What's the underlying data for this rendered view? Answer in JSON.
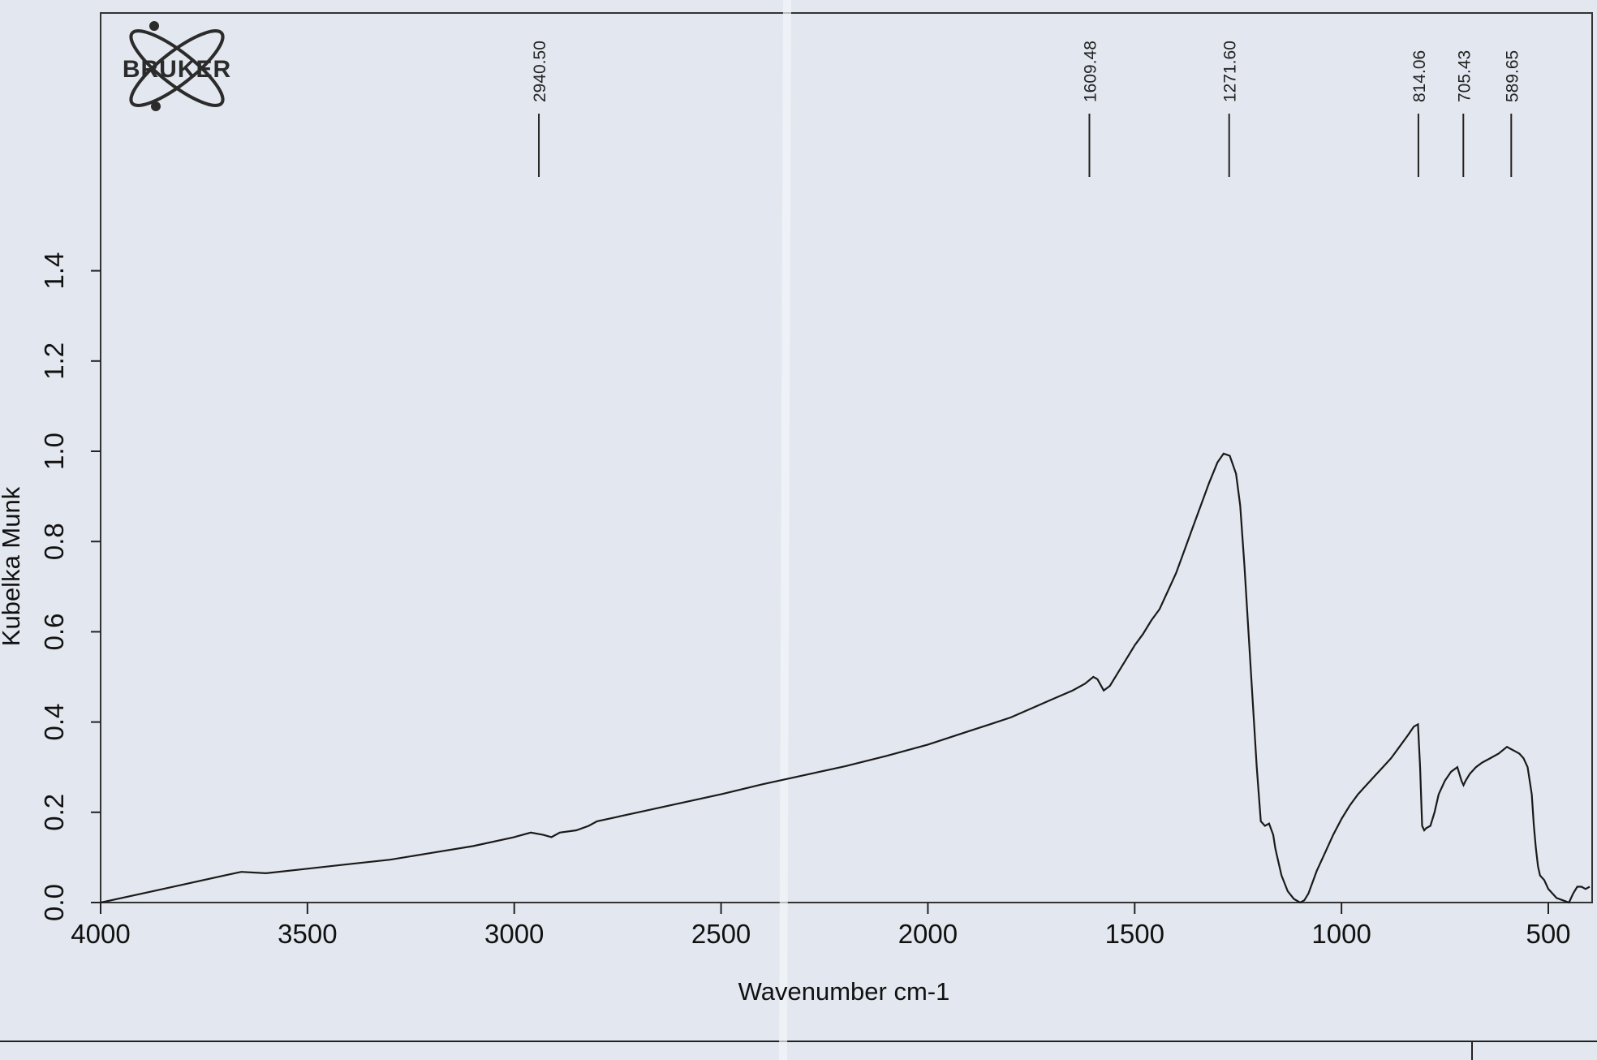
{
  "logo": {
    "text": "BRUKER"
  },
  "colors": {
    "background": "#e3e7ef",
    "line": "#1a1a1a",
    "axis": "#222222"
  },
  "chart_data": {
    "type": "line",
    "title": "",
    "xlabel": "Wavenumber cm-1",
    "ylabel": "Kubelka Munk",
    "xlim": [
      4000,
      400
    ],
    "ylim": [
      0,
      1.7
    ],
    "x_reversed": true,
    "grid": false,
    "x_ticks": [
      4000,
      3500,
      3000,
      2500,
      2000,
      1500,
      1000,
      500
    ],
    "x_tick_labels": [
      "4000",
      "3500",
      "3000",
      "2500",
      "2000",
      "1500",
      "1000",
      "500"
    ],
    "y_ticks": [
      0.0,
      0.2,
      0.4,
      0.6,
      0.8,
      1.0,
      1.2,
      1.4
    ],
    "y_tick_labels": [
      "0.0",
      "0.2",
      "0.4",
      "0.6",
      "0.8",
      "1.0",
      "1.2",
      "1.4"
    ],
    "peak_labels": [
      {
        "x": 2940.5,
        "label": "2940.50"
      },
      {
        "x": 1609.48,
        "label": "1609.48"
      },
      {
        "x": 1271.6,
        "label": "1271.60"
      },
      {
        "x": 814.06,
        "label": "814.06"
      },
      {
        "x": 705.43,
        "label": "705.43"
      },
      {
        "x": 589.65,
        "label": "589.65"
      }
    ],
    "series": [
      {
        "x": [
          4000,
          3900,
          3800,
          3700,
          3660,
          3600,
          3500,
          3400,
          3300,
          3200,
          3100,
          3000,
          2960,
          2930,
          2910,
          2890,
          2850,
          2820,
          2800,
          2700,
          2600,
          2500,
          2400,
          2300,
          2200,
          2100,
          2000,
          1900,
          1850,
          1800,
          1750,
          1700,
          1650,
          1620,
          1600,
          1590,
          1575,
          1560,
          1540,
          1520,
          1500,
          1480,
          1460,
          1440,
          1420,
          1400,
          1380,
          1360,
          1340,
          1320,
          1300,
          1285,
          1270,
          1255,
          1245,
          1235,
          1225,
          1215,
          1205,
          1195,
          1185,
          1175,
          1165,
          1160,
          1155,
          1145,
          1130,
          1115,
          1100,
          1090,
          1080,
          1070,
          1060,
          1040,
          1020,
          1000,
          980,
          960,
          940,
          920,
          900,
          880,
          860,
          840,
          825,
          815,
          810,
          805,
          800,
          795,
          785,
          775,
          765,
          750,
          735,
          720,
          710,
          705,
          700,
          690,
          675,
          660,
          640,
          620,
          600,
          590,
          580,
          570,
          560,
          550,
          540,
          535,
          530,
          525,
          520,
          510,
          500,
          480,
          465,
          450,
          440,
          430,
          420,
          410,
          400
        ],
        "y": [
          0.0,
          0.02,
          0.04,
          0.06,
          0.068,
          0.065,
          0.075,
          0.085,
          0.095,
          0.11,
          0.125,
          0.145,
          0.155,
          0.15,
          0.145,
          0.155,
          0.16,
          0.17,
          0.18,
          0.2,
          0.22,
          0.24,
          0.262,
          0.282,
          0.302,
          0.325,
          0.35,
          0.38,
          0.395,
          0.41,
          0.43,
          0.45,
          0.47,
          0.485,
          0.5,
          0.495,
          0.47,
          0.48,
          0.51,
          0.54,
          0.57,
          0.595,
          0.625,
          0.65,
          0.69,
          0.73,
          0.78,
          0.83,
          0.88,
          0.93,
          0.975,
          0.995,
          0.99,
          0.95,
          0.88,
          0.75,
          0.6,
          0.45,
          0.3,
          0.18,
          0.17,
          0.175,
          0.15,
          0.12,
          0.1,
          0.06,
          0.025,
          0.008,
          0.0,
          0.005,
          0.02,
          0.045,
          0.07,
          0.11,
          0.15,
          0.185,
          0.215,
          0.24,
          0.26,
          0.28,
          0.3,
          0.32,
          0.345,
          0.37,
          0.39,
          0.395,
          0.3,
          0.17,
          0.16,
          0.165,
          0.17,
          0.2,
          0.24,
          0.27,
          0.29,
          0.3,
          0.27,
          0.26,
          0.27,
          0.285,
          0.3,
          0.31,
          0.32,
          0.33,
          0.345,
          0.34,
          0.335,
          0.33,
          0.32,
          0.3,
          0.24,
          0.17,
          0.12,
          0.08,
          0.06,
          0.05,
          0.03,
          0.01,
          0.005,
          0.0,
          0.02,
          0.035,
          0.035,
          0.03,
          0.035
        ]
      }
    ]
  }
}
